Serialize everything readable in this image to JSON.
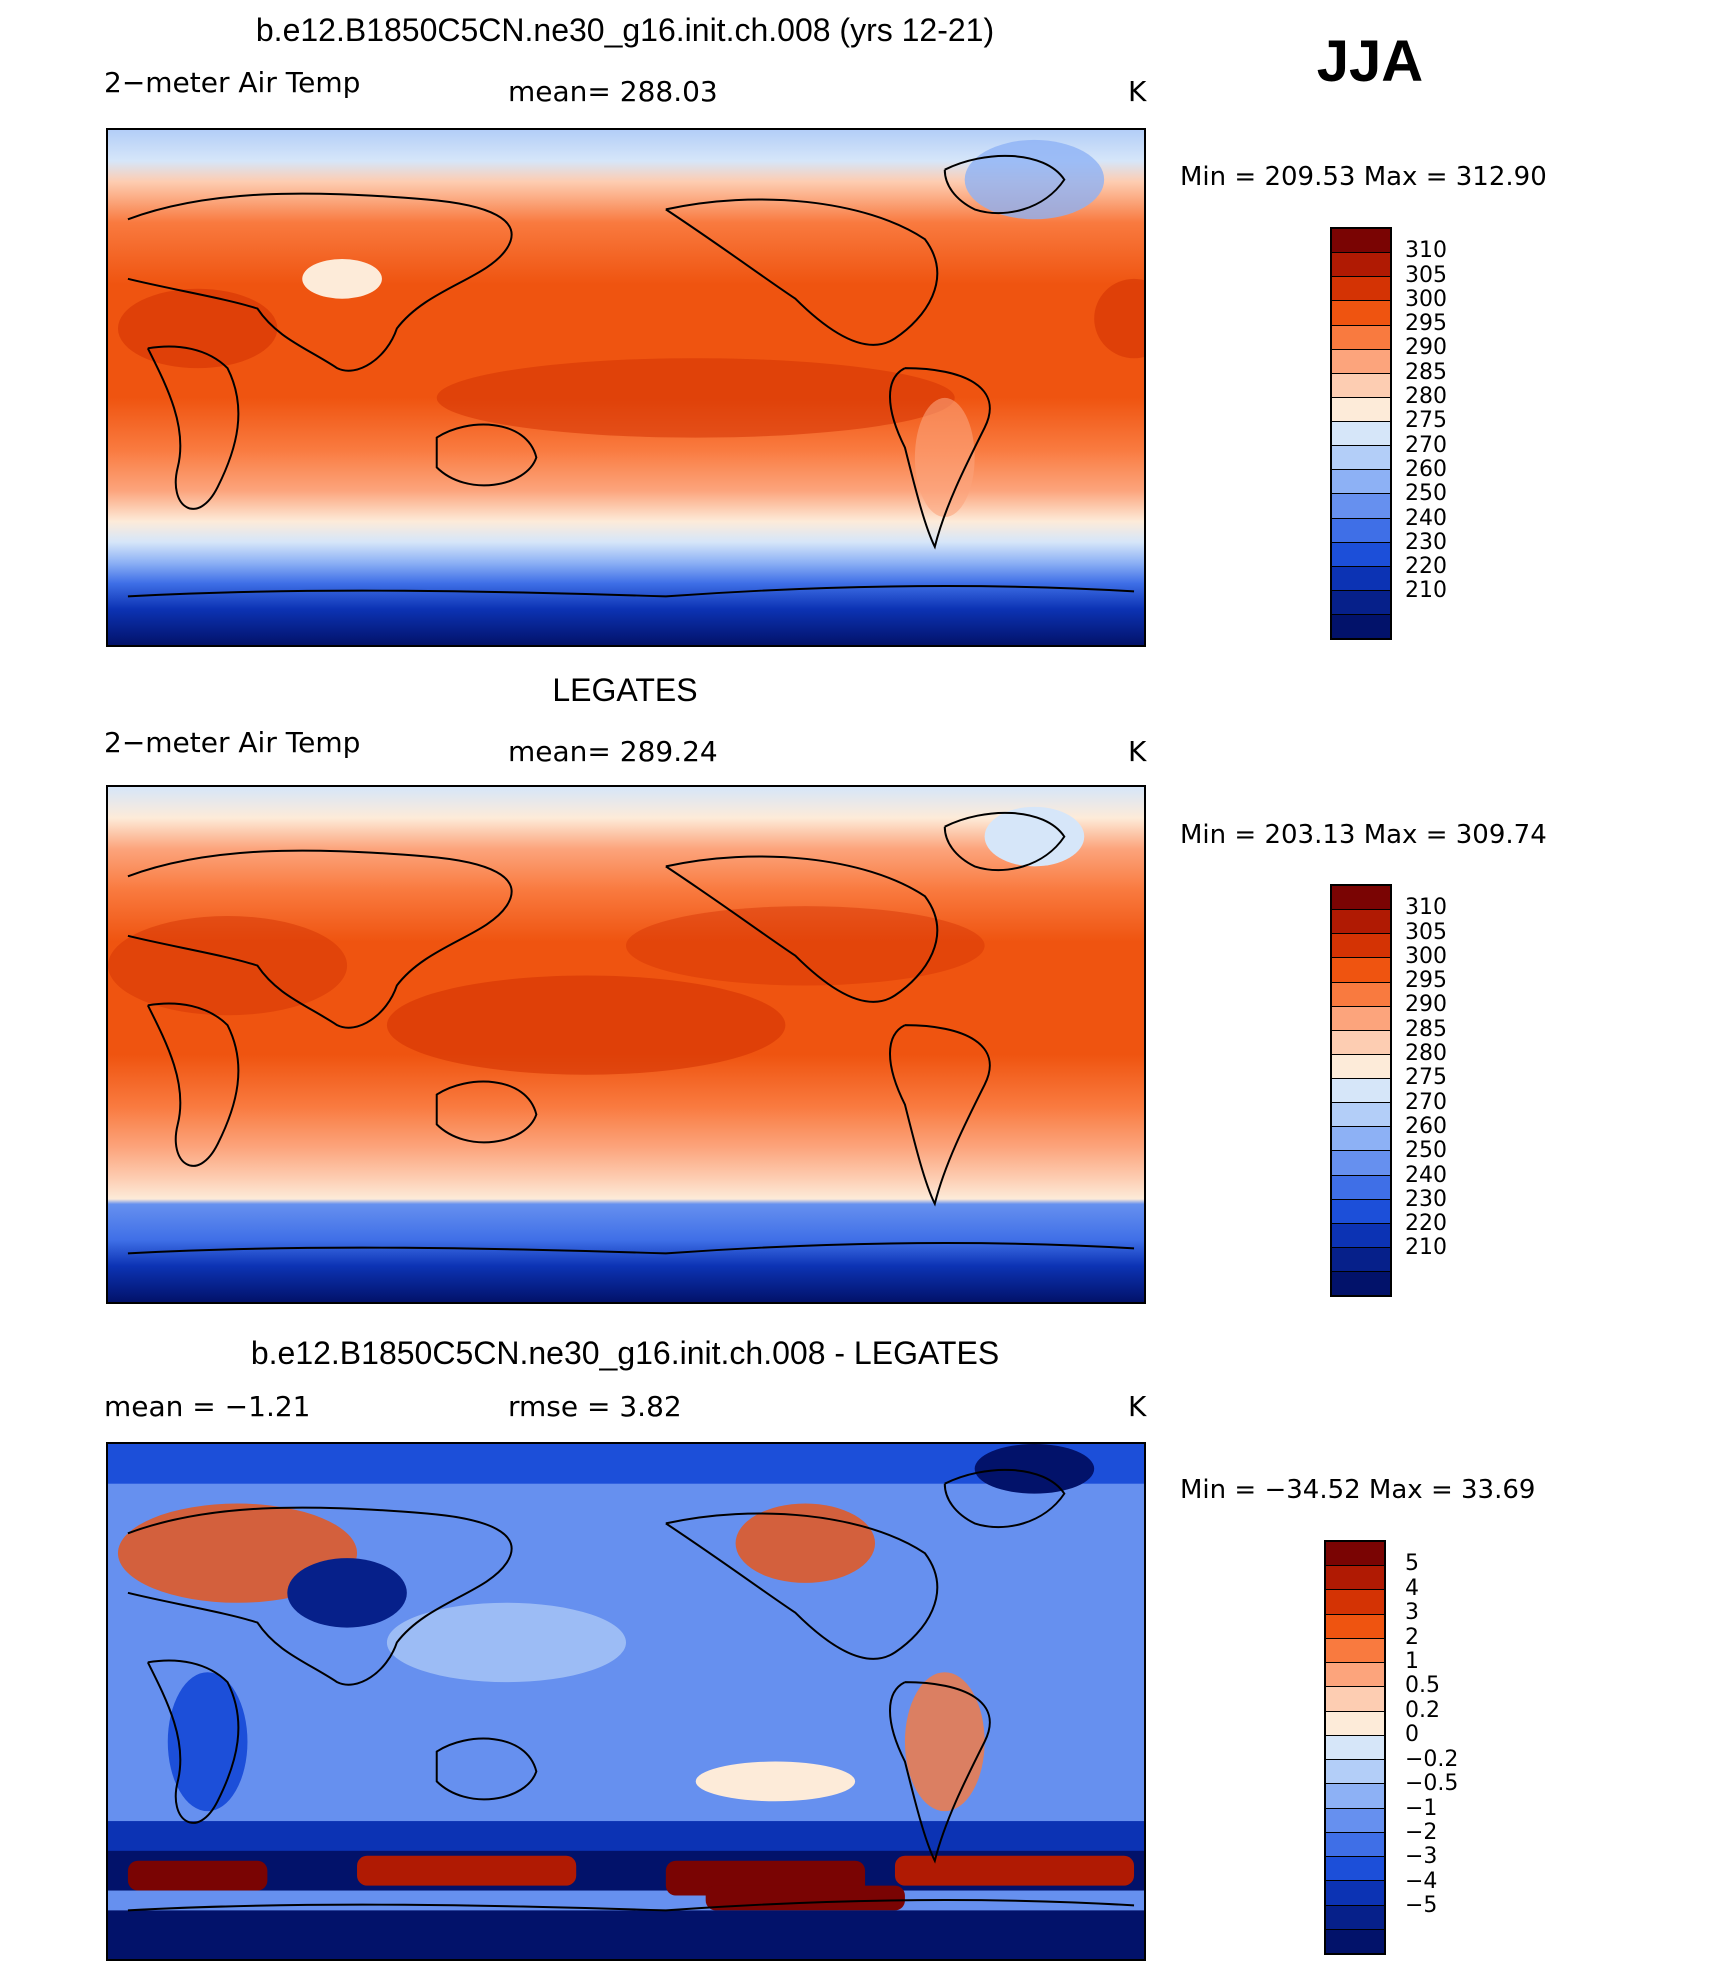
{
  "season": "JJA",
  "colors": {
    "temp_scale": [
      "#7a0403",
      "#b01a03",
      "#d43304",
      "#ef5410",
      "#f97a3f",
      "#fca47c",
      "#fdcdb2",
      "#fdebd9",
      "#d6e6f9",
      "#b3cef8",
      "#8db1f5",
      "#6690ef",
      "#3f6fe7",
      "#1c4fd9",
      "#0c33b4",
      "#06208a",
      "#02126a"
    ],
    "diff_scale": [
      "#7a0403",
      "#b01a03",
      "#d43304",
      "#ef5410",
      "#f97a3f",
      "#fca47c",
      "#fdcdb2",
      "#fdebd9",
      "#d6e6f9",
      "#b3cef8",
      "#8db1f5",
      "#6690ef",
      "#3f6fe7",
      "#1c4fd9",
      "#0c33b4",
      "#06208a",
      "#02126a"
    ]
  },
  "panels": [
    {
      "title": "b.e12.B1850C5CN.ne30_g16.init.ch.008 (yrs 12-21)",
      "variable": "2−meter Air Temp",
      "stat": "mean=  288.03",
      "units": "K",
      "minmax": "Min  =  209.53  Max  =  312.90",
      "colorbar_labels": [
        "310",
        "305",
        "300",
        "295",
        "290",
        "285",
        "280",
        "275",
        "270",
        "260",
        "250",
        "240",
        "230",
        "220",
        "210"
      ]
    },
    {
      "title": "LEGATES",
      "variable": "2−meter Air Temp",
      "stat": "mean=  289.24",
      "units": "K",
      "minmax": "Min  =  203.13  Max  =  309.74",
      "colorbar_labels": [
        "310",
        "305",
        "300",
        "295",
        "290",
        "285",
        "280",
        "275",
        "270",
        "260",
        "250",
        "240",
        "230",
        "220",
        "210"
      ]
    },
    {
      "title": "b.e12.B1850C5CN.ne30_g16.init.ch.008 - LEGATES",
      "variable": "mean  =    −1.21",
      "stat": "rmse  =     3.82",
      "units": "K",
      "minmax": "Min  =  −34.52  Max  =    33.69",
      "colorbar_labels": [
        "5",
        "4",
        "3",
        "2",
        "1",
        "0.5",
        "0.2",
        "0",
        "−0.2",
        "−0.5",
        "−1",
        "−2",
        "−3",
        "−4",
        "−5"
      ]
    }
  ]
}
